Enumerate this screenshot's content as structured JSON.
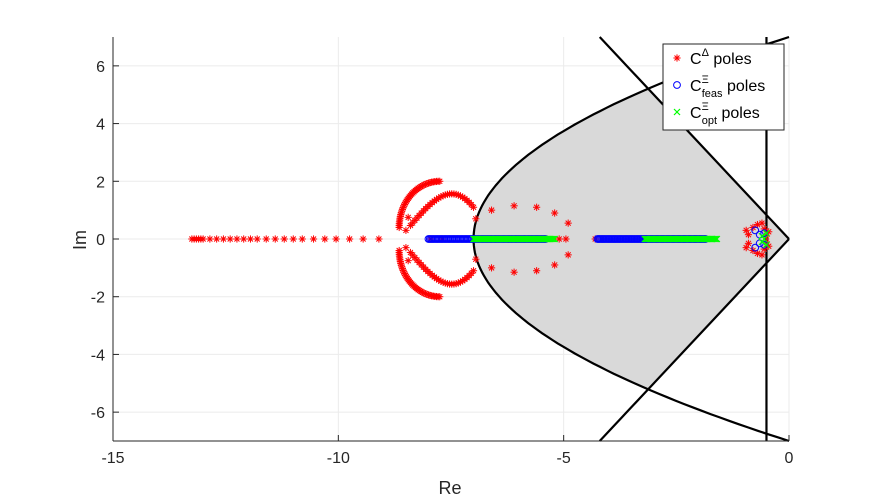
{
  "chart_data": {
    "type": "scatter",
    "xlabel": "Re",
    "ylabel": "Im",
    "xlim": [
      -15,
      0
    ],
    "ylim": [
      -7,
      7
    ],
    "xticks": [
      -15,
      -10,
      -5,
      0
    ],
    "yticks": [
      -6,
      -4,
      -2,
      0,
      2,
      4,
      6
    ],
    "grid": true,
    "legend_position": "top-right",
    "series": [
      {
        "name": "C^Δ poles",
        "legend": {
          "base": "C",
          "sup": "Δ",
          "sub": "",
          "suffix": "poles"
        },
        "marker": "asterisk",
        "color": "#ff0000",
        "points": [
          [
            -13.25,
            0
          ],
          [
            -13.2,
            0
          ],
          [
            -13.15,
            0
          ],
          [
            -13.1,
            0
          ],
          [
            -13.05,
            0
          ],
          [
            -13.0,
            0
          ],
          [
            -12.85,
            0
          ],
          [
            -12.7,
            0
          ],
          [
            -12.55,
            0
          ],
          [
            -12.4,
            0
          ],
          [
            -12.25,
            0
          ],
          [
            -12.1,
            0
          ],
          [
            -11.95,
            0
          ],
          [
            -11.8,
            0
          ],
          [
            -11.6,
            0
          ],
          [
            -11.4,
            0
          ],
          [
            -11.2,
            0
          ],
          [
            -11.0,
            0
          ],
          [
            -10.8,
            0
          ],
          [
            -10.55,
            0
          ],
          [
            -10.3,
            0
          ],
          [
            -10.05,
            0
          ],
          [
            -9.75,
            0
          ],
          [
            -9.45,
            0
          ],
          [
            -9.1,
            0
          ],
          [
            -8.5,
            0.3
          ],
          [
            -8.5,
            -0.3
          ],
          [
            -8.45,
            0.75
          ],
          [
            -8.45,
            -0.75
          ],
          [
            -7.95,
            0
          ],
          [
            -7.7,
            0
          ],
          [
            -5.1,
            0
          ],
          [
            -4.95,
            0
          ],
          [
            -4.3,
            0
          ],
          [
            -4.15,
            0
          ],
          [
            -6.95,
            0.7
          ],
          [
            -6.95,
            -0.7
          ],
          [
            -6.6,
            1.0
          ],
          [
            -6.6,
            -1.0
          ],
          [
            -6.1,
            1.15
          ],
          [
            -6.1,
            -1.15
          ],
          [
            -5.6,
            1.1
          ],
          [
            -5.6,
            -1.1
          ],
          [
            -5.2,
            0.9
          ],
          [
            -5.2,
            -0.9
          ],
          [
            -4.9,
            0.55
          ],
          [
            -4.9,
            -0.55
          ],
          [
            -0.95,
            0.3
          ],
          [
            -0.95,
            -0.3
          ],
          [
            -0.9,
            0.15
          ],
          [
            -0.9,
            -0.15
          ],
          [
            -0.8,
            0.4
          ],
          [
            -0.8,
            -0.4
          ],
          [
            -0.7,
            0.5
          ],
          [
            -0.7,
            -0.5
          ],
          [
            -0.6,
            0.55
          ],
          [
            -0.6,
            -0.55
          ],
          [
            -0.55,
            0.35
          ],
          [
            -0.55,
            -0.35
          ],
          [
            -0.5,
            0.1
          ],
          [
            -0.5,
            -0.1
          ],
          [
            -0.45,
            0.25
          ],
          [
            -0.45,
            -0.25
          ]
        ],
        "arcs": [
          {
            "center": [
              -7.75,
              0
            ],
            "rx": 0.9,
            "ry": 1.6,
            "shift": [
              0,
              0.4
            ],
            "from_deg": 90,
            "to_deg": 180,
            "n": 40
          },
          {
            "center": [
              -7.75,
              0
            ],
            "rx": 0.9,
            "ry": 1.6,
            "shift": [
              0,
              -0.4
            ],
            "from_deg": 180,
            "to_deg": 270,
            "n": 40
          }
        ],
        "dense_segments": [
          {
            "x_from": -8.4,
            "x_to": -7.0,
            "curve": "upper",
            "n": 30
          },
          {
            "x_from": -8.4,
            "x_to": -7.0,
            "curve": "lower",
            "n": 30
          }
        ]
      },
      {
        "name": "C^Ξ_feas poles",
        "legend": {
          "base": "C",
          "sup": "Ξ",
          "sub": "feas",
          "suffix": "poles"
        },
        "marker": "circle",
        "color": "#0000ff",
        "points": [
          [
            -0.75,
            0.3
          ],
          [
            -0.75,
            -0.3
          ],
          [
            -0.65,
            0.15
          ],
          [
            -0.65,
            -0.15
          ],
          [
            -0.55,
            0.2
          ],
          [
            -0.55,
            -0.2
          ]
        ],
        "segments": [
          {
            "from": -8.0,
            "to": -5.4,
            "y": 0,
            "n": 90
          },
          {
            "from": -4.25,
            "to": -1.85,
            "y": 0,
            "n": 90
          }
        ]
      },
      {
        "name": "C^Ξ_opt poles",
        "legend": {
          "base": "C",
          "sup": "Ξ",
          "sub": "opt",
          "suffix": "poles"
        },
        "marker": "x",
        "color": "#00ff00",
        "points": [
          [
            -0.6,
            0.1
          ],
          [
            -0.6,
            -0.1
          ],
          [
            -0.5,
            0.2
          ],
          [
            -0.5,
            -0.2
          ],
          [
            -0.55,
            0
          ]
        ],
        "segments": [
          {
            "from": -7.0,
            "to": -5.2,
            "y": 0,
            "n": 70
          },
          {
            "from": -3.2,
            "to": -1.6,
            "y": 0,
            "n": 60
          }
        ]
      }
    ],
    "region": {
      "fill": "#d9d9d9",
      "stroke": "#000000",
      "parabola": {
        "vertex_x": -7.0,
        "passes_through": [
          0,
          7
        ]
      },
      "sector_apex": [
        0,
        0
      ],
      "sector_edge_points": [
        [
          -4.2,
          7
        ],
        [
          -4.2,
          -7
        ]
      ],
      "vertical_line_x": -0.5
    }
  }
}
